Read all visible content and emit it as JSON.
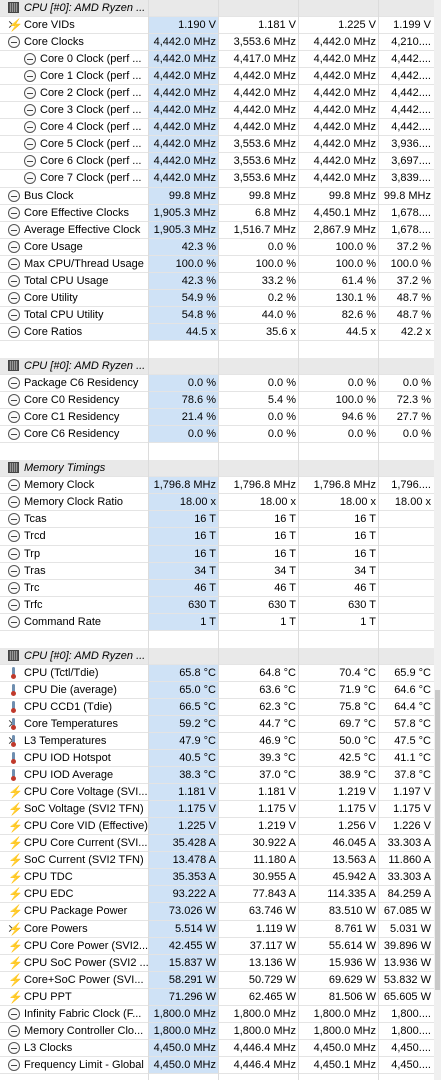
{
  "rows": [
    {
      "t": "header",
      "label": "CPU [#0]: AMD Ryzen ..."
    },
    {
      "chev": true,
      "icon": "bolt",
      "label": "Core VIDs",
      "values": [
        "1.190 V",
        "1.181 V",
        "1.225 V",
        "1.199 V"
      ]
    },
    {
      "chev": true,
      "icon": "clock",
      "label": "Core Clocks",
      "values": [
        "4,442.0 MHz",
        "3,553.6 MHz",
        "4,442.0 MHz",
        "4,210...."
      ]
    },
    {
      "indent": 1,
      "icon": "clock",
      "label": "Core 0 Clock (perf ...",
      "values": [
        "4,442.0 MHz",
        "4,417.0 MHz",
        "4,442.0 MHz",
        "4,442...."
      ]
    },
    {
      "indent": 1,
      "icon": "clock",
      "label": "Core 1 Clock (perf ...",
      "values": [
        "4,442.0 MHz",
        "4,442.0 MHz",
        "4,442.0 MHz",
        "4,442...."
      ]
    },
    {
      "indent": 1,
      "icon": "clock",
      "label": "Core 2 Clock (perf ...",
      "values": [
        "4,442.0 MHz",
        "4,442.0 MHz",
        "4,442.0 MHz",
        "4,442...."
      ]
    },
    {
      "indent": 1,
      "icon": "clock",
      "label": "Core 3 Clock (perf ...",
      "values": [
        "4,442.0 MHz",
        "4,442.0 MHz",
        "4,442.0 MHz",
        "4,442...."
      ]
    },
    {
      "indent": 1,
      "icon": "clock",
      "label": "Core 4 Clock (perf ...",
      "values": [
        "4,442.0 MHz",
        "4,442.0 MHz",
        "4,442.0 MHz",
        "4,442...."
      ]
    },
    {
      "indent": 1,
      "icon": "clock",
      "label": "Core 5 Clock (perf ...",
      "values": [
        "4,442.0 MHz",
        "3,553.6 MHz",
        "4,442.0 MHz",
        "3,936...."
      ]
    },
    {
      "indent": 1,
      "icon": "clock",
      "label": "Core 6 Clock (perf ...",
      "values": [
        "4,442.0 MHz",
        "3,553.6 MHz",
        "4,442.0 MHz",
        "3,697...."
      ]
    },
    {
      "indent": 1,
      "icon": "clock",
      "label": "Core 7 Clock (perf ...",
      "values": [
        "4,442.0 MHz",
        "3,553.6 MHz",
        "4,442.0 MHz",
        "3,839...."
      ]
    },
    {
      "icon": "clock",
      "label": "Bus Clock",
      "values": [
        "99.8 MHz",
        "99.8 MHz",
        "99.8 MHz",
        "99.8 MHz"
      ]
    },
    {
      "chev": true,
      "icon": "clock",
      "label": "Core Effective Clocks",
      "values": [
        "1,905.3 MHz",
        "6.8 MHz",
        "4,450.1 MHz",
        "1,678...."
      ]
    },
    {
      "icon": "clock",
      "label": "Average Effective Clock",
      "values": [
        "1,905.3 MHz",
        "1,516.7 MHz",
        "2,867.9 MHz",
        "1,678...."
      ]
    },
    {
      "chev": true,
      "icon": "clock",
      "label": "Core Usage",
      "values": [
        "42.3 %",
        "0.0 %",
        "100.0 %",
        "37.2 %"
      ]
    },
    {
      "icon": "clock",
      "label": "Max CPU/Thread Usage",
      "values": [
        "100.0 %",
        "100.0 %",
        "100.0 %",
        "100.0 %"
      ]
    },
    {
      "icon": "clock",
      "label": "Total CPU Usage",
      "values": [
        "42.3 %",
        "33.2 %",
        "61.4 %",
        "37.2 %"
      ]
    },
    {
      "chev": true,
      "icon": "clock",
      "label": "Core Utility",
      "values": [
        "54.9 %",
        "0.2 %",
        "130.1 %",
        "48.7 %"
      ]
    },
    {
      "icon": "clock",
      "label": "Total CPU Utility",
      "values": [
        "54.8 %",
        "44.0 %",
        "82.6 %",
        "48.7 %"
      ]
    },
    {
      "chev": true,
      "icon": "clock",
      "label": "Core Ratios",
      "values": [
        "44.5 x",
        "35.6 x",
        "44.5 x",
        "42.2 x"
      ]
    },
    {
      "t": "blank"
    },
    {
      "t": "header",
      "label": "CPU [#0]: AMD Ryzen ..."
    },
    {
      "icon": "clock",
      "label": "Package C6 Residency",
      "values": [
        "0.0 %",
        "0.0 %",
        "0.0 %",
        "0.0 %"
      ]
    },
    {
      "chev": true,
      "icon": "clock",
      "label": "Core C0 Residency",
      "values": [
        "78.6 %",
        "5.4 %",
        "100.0 %",
        "72.3 %"
      ]
    },
    {
      "chev": true,
      "icon": "clock",
      "label": "Core C1 Residency",
      "values": [
        "21.4 %",
        "0.0 %",
        "94.6 %",
        "27.7 %"
      ]
    },
    {
      "chev": true,
      "icon": "clock",
      "label": "Core C6 Residency",
      "values": [
        "0.0 %",
        "0.0 %",
        "0.0 %",
        "0.0 %"
      ]
    },
    {
      "t": "blank"
    },
    {
      "t": "header",
      "label": "Memory Timings"
    },
    {
      "icon": "clock",
      "label": "Memory Clock",
      "values": [
        "1,796.8 MHz",
        "1,796.8 MHz",
        "1,796.8 MHz",
        "1,796...."
      ]
    },
    {
      "icon": "clock",
      "label": "Memory Clock Ratio",
      "values": [
        "18.00 x",
        "18.00 x",
        "18.00 x",
        "18.00 x"
      ]
    },
    {
      "icon": "clock",
      "label": "Tcas",
      "values": [
        "16 T",
        "16 T",
        "16 T",
        ""
      ]
    },
    {
      "icon": "clock",
      "label": "Trcd",
      "values": [
        "16 T",
        "16 T",
        "16 T",
        ""
      ]
    },
    {
      "icon": "clock",
      "label": "Trp",
      "values": [
        "16 T",
        "16 T",
        "16 T",
        ""
      ]
    },
    {
      "icon": "clock",
      "label": "Tras",
      "values": [
        "34 T",
        "34 T",
        "34 T",
        ""
      ]
    },
    {
      "icon": "clock",
      "label": "Trc",
      "values": [
        "46 T",
        "46 T",
        "46 T",
        ""
      ]
    },
    {
      "icon": "clock",
      "label": "Trfc",
      "values": [
        "630 T",
        "630 T",
        "630 T",
        ""
      ]
    },
    {
      "icon": "clock",
      "label": "Command Rate",
      "values": [
        "1 T",
        "1 T",
        "1 T",
        ""
      ]
    },
    {
      "t": "blank"
    },
    {
      "t": "header",
      "label": "CPU [#0]: AMD Ryzen ..."
    },
    {
      "icon": "therm",
      "label": "CPU (Tctl/Tdie)",
      "values": [
        "65.8 °C",
        "64.8 °C",
        "70.4 °C",
        "65.9 °C"
      ]
    },
    {
      "icon": "therm",
      "label": "CPU Die (average)",
      "values": [
        "65.0 °C",
        "63.6 °C",
        "71.9 °C",
        "64.6 °C"
      ]
    },
    {
      "icon": "therm",
      "label": "CPU CCD1 (Tdie)",
      "values": [
        "66.5 °C",
        "62.3 °C",
        "75.8 °C",
        "64.4 °C"
      ]
    },
    {
      "chev": true,
      "icon": "therm",
      "label": "Core Temperatures",
      "values": [
        "59.2 °C",
        "44.7 °C",
        "69.7 °C",
        "57.8 °C"
      ]
    },
    {
      "chev": true,
      "icon": "therm",
      "label": "L3 Temperatures",
      "values": [
        "47.9 °C",
        "46.9 °C",
        "50.0 °C",
        "47.5 °C"
      ]
    },
    {
      "icon": "therm",
      "label": "CPU IOD Hotspot",
      "values": [
        "40.5 °C",
        "39.3 °C",
        "42.5 °C",
        "41.1 °C"
      ]
    },
    {
      "icon": "therm",
      "label": "CPU IOD Average",
      "values": [
        "38.3 °C",
        "37.0 °C",
        "38.9 °C",
        "37.8 °C"
      ]
    },
    {
      "icon": "bolt",
      "label": "CPU Core Voltage (SVI...",
      "values": [
        "1.181 V",
        "1.181 V",
        "1.219 V",
        "1.197 V"
      ]
    },
    {
      "icon": "bolt",
      "label": "SoC Voltage (SVI2 TFN)",
      "values": [
        "1.175 V",
        "1.175 V",
        "1.175 V",
        "1.175 V"
      ]
    },
    {
      "icon": "bolt",
      "label": "CPU Core VID (Effective)",
      "values": [
        "1.225 V",
        "1.219 V",
        "1.256 V",
        "1.226 V"
      ]
    },
    {
      "icon": "bolt",
      "label": "CPU Core Current (SVI...",
      "values": [
        "35.428 A",
        "30.922 A",
        "46.045 A",
        "33.303 A"
      ]
    },
    {
      "icon": "bolt",
      "label": "SoC Current (SVI2 TFN)",
      "values": [
        "13.478 A",
        "11.180 A",
        "13.563 A",
        "11.860 A"
      ]
    },
    {
      "icon": "bolt",
      "label": "CPU TDC",
      "values": [
        "35.353 A",
        "30.955 A",
        "45.942 A",
        "33.303 A"
      ]
    },
    {
      "icon": "bolt",
      "label": "CPU EDC",
      "values": [
        "93.222 A",
        "77.843 A",
        "114.335 A",
        "84.259 A"
      ]
    },
    {
      "icon": "bolt",
      "label": "CPU Package Power",
      "values": [
        "73.026 W",
        "63.746 W",
        "83.510 W",
        "67.085 W"
      ]
    },
    {
      "chev": true,
      "icon": "bolt",
      "label": "Core Powers",
      "values": [
        "5.514 W",
        "1.119 W",
        "8.761 W",
        "5.031 W"
      ]
    },
    {
      "icon": "bolt",
      "label": "CPU Core Power (SVI2...",
      "values": [
        "42.455 W",
        "37.117 W",
        "55.614 W",
        "39.896 W"
      ]
    },
    {
      "icon": "bolt",
      "label": "CPU SoC Power (SVI2 ...",
      "values": [
        "15.837 W",
        "13.136 W",
        "15.936 W",
        "13.936 W"
      ]
    },
    {
      "icon": "bolt",
      "label": "Core+SoC Power (SVI...",
      "values": [
        "58.291 W",
        "50.729 W",
        "69.629 W",
        "53.832 W"
      ]
    },
    {
      "icon": "bolt",
      "label": "CPU PPT",
      "values": [
        "71.296 W",
        "62.465 W",
        "81.506 W",
        "65.605 W"
      ]
    },
    {
      "icon": "clock",
      "label": "Infinity Fabric Clock (F...",
      "values": [
        "1,800.0 MHz",
        "1,800.0 MHz",
        "1,800.0 MHz",
        "1,800...."
      ]
    },
    {
      "icon": "clock",
      "label": "Memory Controller Clo...",
      "values": [
        "1,800.0 MHz",
        "1,800.0 MHz",
        "1,800.0 MHz",
        "1,800...."
      ]
    },
    {
      "chev": true,
      "icon": "clock",
      "label": "L3 Clocks",
      "values": [
        "4,450.0 MHz",
        "4,446.4 MHz",
        "4,450.0 MHz",
        "4,450...."
      ]
    },
    {
      "icon": "clock",
      "label": "Frequency Limit - Global",
      "values": [
        "4,450.0 MHz",
        "4,446.4 MHz",
        "4,450.1 MHz",
        "4,450...."
      ]
    }
  ]
}
